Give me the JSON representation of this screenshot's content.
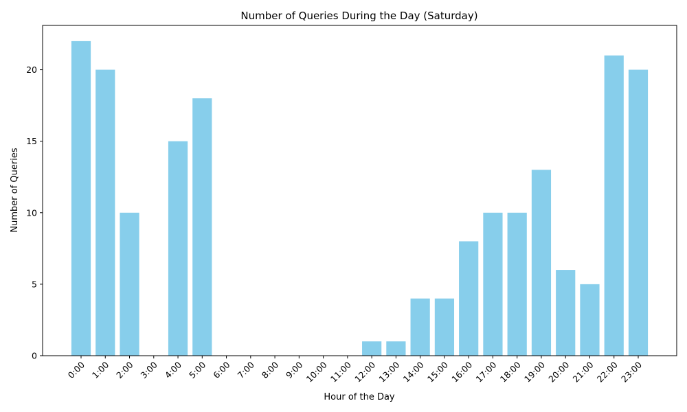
{
  "chart_data": {
    "type": "bar",
    "title": "Number of Queries During the Day (Saturday)",
    "xlabel": "Hour of the Day",
    "ylabel": "Number of Queries",
    "categories": [
      "0:00",
      "1:00",
      "2:00",
      "3:00",
      "4:00",
      "5:00",
      "6:00",
      "7:00",
      "8:00",
      "9:00",
      "10:00",
      "11:00",
      "12:00",
      "13:00",
      "14:00",
      "15:00",
      "16:00",
      "17:00",
      "18:00",
      "19:00",
      "20:00",
      "21:00",
      "22:00",
      "23:00"
    ],
    "values": [
      22,
      20,
      10,
      0,
      15,
      18,
      0,
      0,
      0,
      0,
      0,
      0,
      1,
      1,
      4,
      4,
      8,
      10,
      10,
      13,
      6,
      5,
      21,
      20
    ],
    "ylim": [
      0,
      23.1
    ],
    "yticks": [
      0,
      5,
      10,
      15,
      20
    ],
    "bar_color": "#87ceeb",
    "grid": false
  }
}
